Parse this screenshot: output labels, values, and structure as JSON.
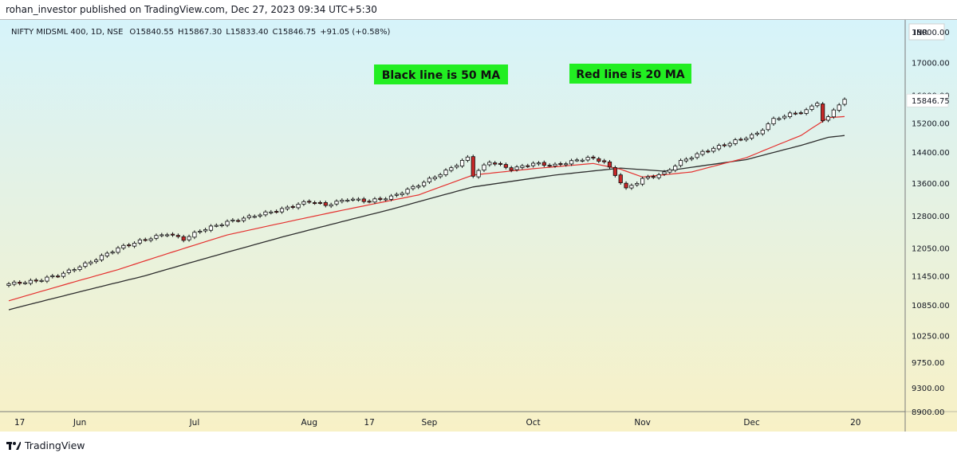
{
  "header": {
    "publisher_text": "rohan_investor published on TradingView.com, Dec 27, 2023 09:34 UTC+5:30"
  },
  "legend": {
    "symbol": "NIFTY MIDSML 400, 1D, NSE",
    "open": "O15840.55",
    "high": "H15867.30",
    "low": "L15833.40",
    "close": "C15846.75",
    "change": "+91.05 (+0.58%)"
  },
  "currency_label": "INR",
  "annotations": [
    {
      "text": "Black line is 50 MA"
    },
    {
      "text": "Red line is 20 MA"
    }
  ],
  "footer": {
    "brand": "TradingView"
  },
  "colors": {
    "bg_top": "#d6f3fa",
    "bg_bottom": "#f8f1c6",
    "ma20": "#e5312f",
    "ma50": "#2e2e2e",
    "candle_down": "#c62828",
    "candle_up": "#ffffff",
    "annotation_bg": "#22ee22",
    "price_badge_bg": "#ffffff"
  },
  "chart_data": {
    "type": "candlestick",
    "y_scale": "log",
    "ylim": [
      8900,
      18400
    ],
    "y_ticks": [
      18000,
      17000,
      16000,
      15200,
      14400,
      13600,
      12800,
      12050,
      11450,
      10850,
      10250,
      9750,
      9300,
      8900
    ],
    "y_tick_labels": [
      "18000.00",
      "17000.00",
      "16000.00",
      "15200.00",
      "14400.00",
      "13600.00",
      "12800.00",
      "12050.00",
      "11450.00",
      "10850.00",
      "10250.00",
      "9750.00",
      "9300.00",
      "8900.00"
    ],
    "x_ticks": [
      {
        "label": "17",
        "index": 2
      },
      {
        "label": "Jun",
        "index": 13
      },
      {
        "label": "Jul",
        "index": 34
      },
      {
        "label": "Aug",
        "index": 55
      },
      {
        "label": "17",
        "index": 66
      },
      {
        "label": "Sep",
        "index": 77
      },
      {
        "label": "Oct",
        "index": 96
      },
      {
        "label": "Nov",
        "index": 116
      },
      {
        "label": "Dec",
        "index": 136
      },
      {
        "label": "20",
        "index": 155
      }
    ],
    "last_price": 15846.75,
    "last_price_label": "15846.75",
    "close_anchors": [
      [
        0,
        11280
      ],
      [
        5,
        11340
      ],
      [
        10,
        11500
      ],
      [
        15,
        11750
      ],
      [
        20,
        12050
      ],
      [
        25,
        12250
      ],
      [
        29,
        12380
      ],
      [
        32,
        12250
      ],
      [
        35,
        12450
      ],
      [
        40,
        12650
      ],
      [
        45,
        12800
      ],
      [
        50,
        12950
      ],
      [
        55,
        13150
      ],
      [
        58,
        13050
      ],
      [
        62,
        13200
      ],
      [
        66,
        13150
      ],
      [
        70,
        13250
      ],
      [
        75,
        13550
      ],
      [
        80,
        13900
      ],
      [
        84,
        14250
      ],
      [
        85,
        13800
      ],
      [
        88,
        14150
      ],
      [
        92,
        13950
      ],
      [
        96,
        14100
      ],
      [
        100,
        14050
      ],
      [
        103,
        14150
      ],
      [
        106,
        14250
      ],
      [
        109,
        14150
      ],
      [
        111,
        13800
      ],
      [
        113,
        13450
      ],
      [
        116,
        13700
      ],
      [
        120,
        13850
      ],
      [
        123,
        14150
      ],
      [
        127,
        14400
      ],
      [
        130,
        14550
      ],
      [
        133,
        14700
      ],
      [
        137,
        14900
      ],
      [
        140,
        15300
      ],
      [
        143,
        15450
      ],
      [
        146,
        15550
      ],
      [
        148,
        15800
      ],
      [
        149,
        15250
      ],
      [
        150,
        15350
      ],
      [
        151,
        15600
      ],
      [
        153,
        15846.75
      ]
    ],
    "ma20_anchors": [
      [
        0,
        10930
      ],
      [
        20,
        11580
      ],
      [
        40,
        12350
      ],
      [
        60,
        12900
      ],
      [
        75,
        13300
      ],
      [
        85,
        13800
      ],
      [
        95,
        13950
      ],
      [
        107,
        14100
      ],
      [
        112,
        13950
      ],
      [
        116,
        13750
      ],
      [
        125,
        13880
      ],
      [
        135,
        14250
      ],
      [
        145,
        14850
      ],
      [
        150,
        15350
      ],
      [
        153,
        15380
      ]
    ],
    "ma50_anchors": [
      [
        0,
        10750
      ],
      [
        25,
        11450
      ],
      [
        50,
        12300
      ],
      [
        70,
        12950
      ],
      [
        85,
        13500
      ],
      [
        100,
        13800
      ],
      [
        112,
        13980
      ],
      [
        120,
        13900
      ],
      [
        135,
        14200
      ],
      [
        145,
        14580
      ],
      [
        150,
        14800
      ],
      [
        153,
        14850
      ]
    ],
    "series": [
      {
        "name": "20 MA"
      },
      {
        "name": "50 MA"
      }
    ]
  }
}
